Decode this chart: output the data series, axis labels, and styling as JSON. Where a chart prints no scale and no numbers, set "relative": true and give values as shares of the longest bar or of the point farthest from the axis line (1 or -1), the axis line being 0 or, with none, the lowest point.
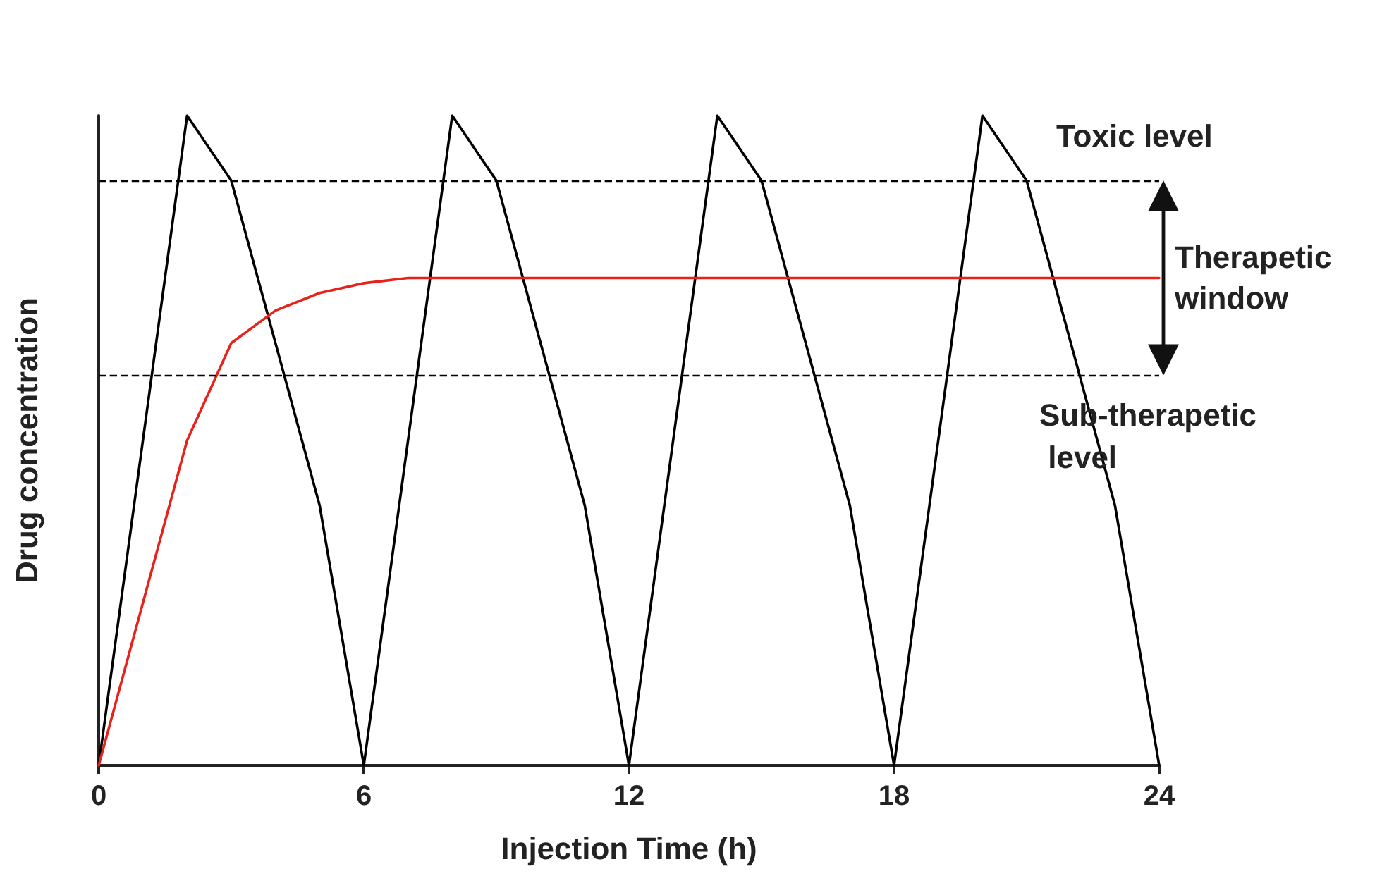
{
  "chart_data": {
    "type": "line",
    "relative": true,
    "xlabel": "Injection Time (h)",
    "ylabel": "Drug concentration",
    "xlim": [
      0,
      24
    ],
    "xticks": [
      0,
      6,
      12,
      18,
      24
    ],
    "tick_labels": "x",
    "grid": false,
    "marker": "none",
    "line_style": "solid",
    "series": [
      {
        "color": "#000000",
        "x": [
          0,
          2,
          3,
          5,
          6,
          8,
          9,
          11,
          12,
          14,
          15,
          17,
          18,
          20,
          21,
          23,
          24
        ],
        "values": [
          0,
          1,
          0.9,
          0.4,
          0,
          1,
          0.9,
          0.4,
          0,
          1,
          0.9,
          0.4,
          0,
          1,
          0.9,
          0.4,
          0
        ]
      },
      {
        "color": "#e8221b",
        "x": [
          0,
          2,
          3,
          4,
          5,
          6,
          7,
          24
        ],
        "values": [
          0,
          0.5,
          0.65,
          0.7,
          0.727,
          0.742,
          0.75,
          0.75
        ]
      }
    ],
    "ref_lines": [
      {
        "axis": "y",
        "value": 0.9,
        "label": "Toxic level",
        "color": "#000000",
        "line_style": "dashed"
      },
      {
        "axis": "y",
        "value": 0.6,
        "label": "Sub-therapetic\n level",
        "color": "#000000",
        "line_style": "dashed"
      }
    ],
    "annotations": [
      "Therapetic\nwindow"
    ]
  }
}
